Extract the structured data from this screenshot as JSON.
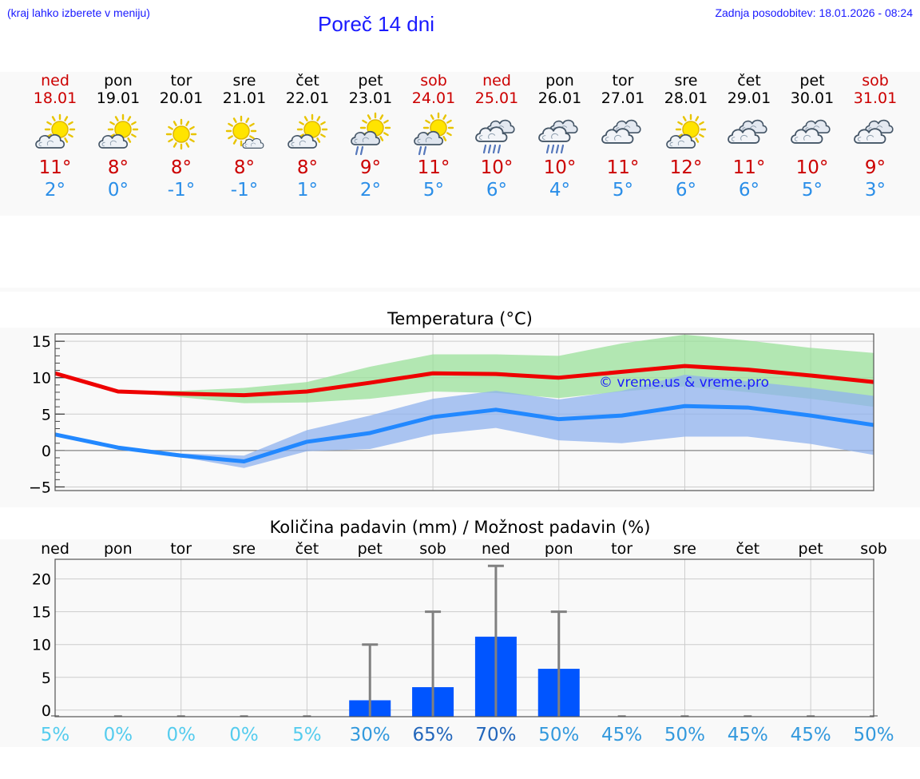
{
  "header": {
    "hint": "(kraj lahko izberete v meniju)",
    "title": "Poreč 14 dni",
    "updated": "Zadnja posodobitev: 18.01.2026 - 08:24"
  },
  "colors": {
    "weekday": "#000000",
    "weekend": "#cc0000",
    "tmax": "#cc0000",
    "tmin": "#2a8ee8",
    "max_line": "#ee0000",
    "min_line": "#2288ff",
    "max_band": "#99e099",
    "min_band": "#8fb2ee",
    "bar": "#0055ff",
    "error_bar": "#808080"
  },
  "days": [
    {
      "name": "ned",
      "date": "18.01",
      "weekend": true,
      "icon": "partly-cloudy-icon",
      "tmax": "11°",
      "tmin": "2°"
    },
    {
      "name": "pon",
      "date": "19.01",
      "weekend": false,
      "icon": "partly-cloudy-icon",
      "tmax": "8°",
      "tmin": "0°"
    },
    {
      "name": "tor",
      "date": "20.01",
      "weekend": false,
      "icon": "sunny-icon",
      "tmax": "8°",
      "tmin": "-1°"
    },
    {
      "name": "sre",
      "date": "21.01",
      "weekend": false,
      "icon": "sun-small-cloud-icon",
      "tmax": "8°",
      "tmin": "-1°"
    },
    {
      "name": "čet",
      "date": "22.01",
      "weekend": false,
      "icon": "partly-cloudy-icon",
      "tmax": "8°",
      "tmin": "1°"
    },
    {
      "name": "pet",
      "date": "23.01",
      "weekend": false,
      "icon": "partly-cloudy-rain-icon",
      "tmax": "9°",
      "tmin": "2°"
    },
    {
      "name": "sob",
      "date": "24.01",
      "weekend": true,
      "icon": "partly-cloudy-rain-icon",
      "tmax": "11°",
      "tmin": "5°"
    },
    {
      "name": "ned",
      "date": "25.01",
      "weekend": true,
      "icon": "cloudy-rain-icon",
      "tmax": "10°",
      "tmin": "6°"
    },
    {
      "name": "pon",
      "date": "26.01",
      "weekend": false,
      "icon": "cloudy-rain-icon",
      "tmax": "10°",
      "tmin": "4°"
    },
    {
      "name": "tor",
      "date": "27.01",
      "weekend": false,
      "icon": "cloudy-icon",
      "tmax": "11°",
      "tmin": "5°"
    },
    {
      "name": "sre",
      "date": "28.01",
      "weekend": false,
      "icon": "partly-cloudy-icon",
      "tmax": "12°",
      "tmin": "6°"
    },
    {
      "name": "čet",
      "date": "29.01",
      "weekend": false,
      "icon": "cloudy-icon",
      "tmax": "11°",
      "tmin": "6°"
    },
    {
      "name": "pet",
      "date": "30.01",
      "weekend": false,
      "icon": "cloudy-icon",
      "tmax": "10°",
      "tmin": "5°"
    },
    {
      "name": "sob",
      "date": "31.01",
      "weekend": true,
      "icon": "cloudy-icon",
      "tmax": "9°",
      "tmin": "3°"
    }
  ],
  "chart_data": [
    {
      "type": "line",
      "title": "Temperatura (°C)",
      "xlabel": "",
      "ylabel": "",
      "ylim": [
        -5.5,
        16
      ],
      "yticks": [
        15,
        10,
        5,
        0,
        -5
      ],
      "ytick_labels": [
        "15",
        "10",
        "5",
        "0",
        "−5"
      ],
      "grid": true,
      "watermark": "© vreme.us & vreme.pro",
      "x": [
        0,
        1,
        2,
        3,
        4,
        5,
        6,
        7,
        8,
        9,
        10,
        11,
        12,
        13
      ],
      "series": [
        {
          "name": "max",
          "values": [
            10.6,
            8.1,
            7.8,
            7.6,
            8.1,
            9.3,
            10.6,
            10.5,
            10.0,
            10.8,
            11.6,
            11.1,
            10.3,
            9.4
          ],
          "band_low": [
            10.6,
            8.1,
            7.3,
            6.5,
            6.6,
            7.1,
            8.1,
            7.9,
            7.2,
            8.1,
            8.8,
            8.0,
            7.1,
            6.0
          ],
          "band_high": [
            10.6,
            8.1,
            8.2,
            8.6,
            9.4,
            11.5,
            13.2,
            13.2,
            13.0,
            14.7,
            15.9,
            15.1,
            14.1,
            13.4
          ]
        },
        {
          "name": "min",
          "values": [
            2.2,
            0.4,
            -0.7,
            -1.5,
            1.2,
            2.4,
            4.6,
            5.6,
            4.3,
            4.8,
            6.1,
            5.9,
            4.8,
            3.5
          ],
          "band_low": [
            2.2,
            0.4,
            -0.9,
            -2.4,
            -0.1,
            0.2,
            2.2,
            3.1,
            1.4,
            1.0,
            1.9,
            1.9,
            0.9,
            -0.6
          ],
          "band_high": [
            2.2,
            0.4,
            -0.4,
            -0.7,
            2.8,
            4.8,
            7.1,
            8.2,
            7.0,
            8.2,
            10.4,
            9.5,
            8.6,
            7.5
          ]
        }
      ]
    },
    {
      "type": "bar",
      "title": "Količina padavin (mm) / Možnost padavin (%)",
      "categories": [
        "ned",
        "pon",
        "tor",
        "sre",
        "čet",
        "pet",
        "sob",
        "ned",
        "pon",
        "tor",
        "sre",
        "čet",
        "pet",
        "sob"
      ],
      "values": [
        0,
        0,
        0,
        0,
        0,
        1.5,
        3.5,
        11.2,
        6.3,
        0,
        0,
        0,
        0,
        0
      ],
      "error_high": [
        0,
        0,
        0,
        0,
        0,
        10,
        15,
        22,
        15,
        0,
        0,
        0,
        0,
        0
      ],
      "probabilities": [
        "5%",
        "0%",
        "0%",
        "0%",
        "5%",
        "30%",
        "65%",
        "70%",
        "50%",
        "45%",
        "50%",
        "45%",
        "45%",
        "50%"
      ],
      "probability_values": [
        5,
        0,
        0,
        0,
        5,
        30,
        65,
        70,
        50,
        45,
        50,
        45,
        45,
        50
      ],
      "ylim": [
        -1,
        23
      ],
      "yticks": [
        20,
        15,
        10,
        5,
        0
      ],
      "ytick_labels": [
        "20",
        "15",
        "10",
        "5",
        "0"
      ],
      "grid": true
    }
  ]
}
